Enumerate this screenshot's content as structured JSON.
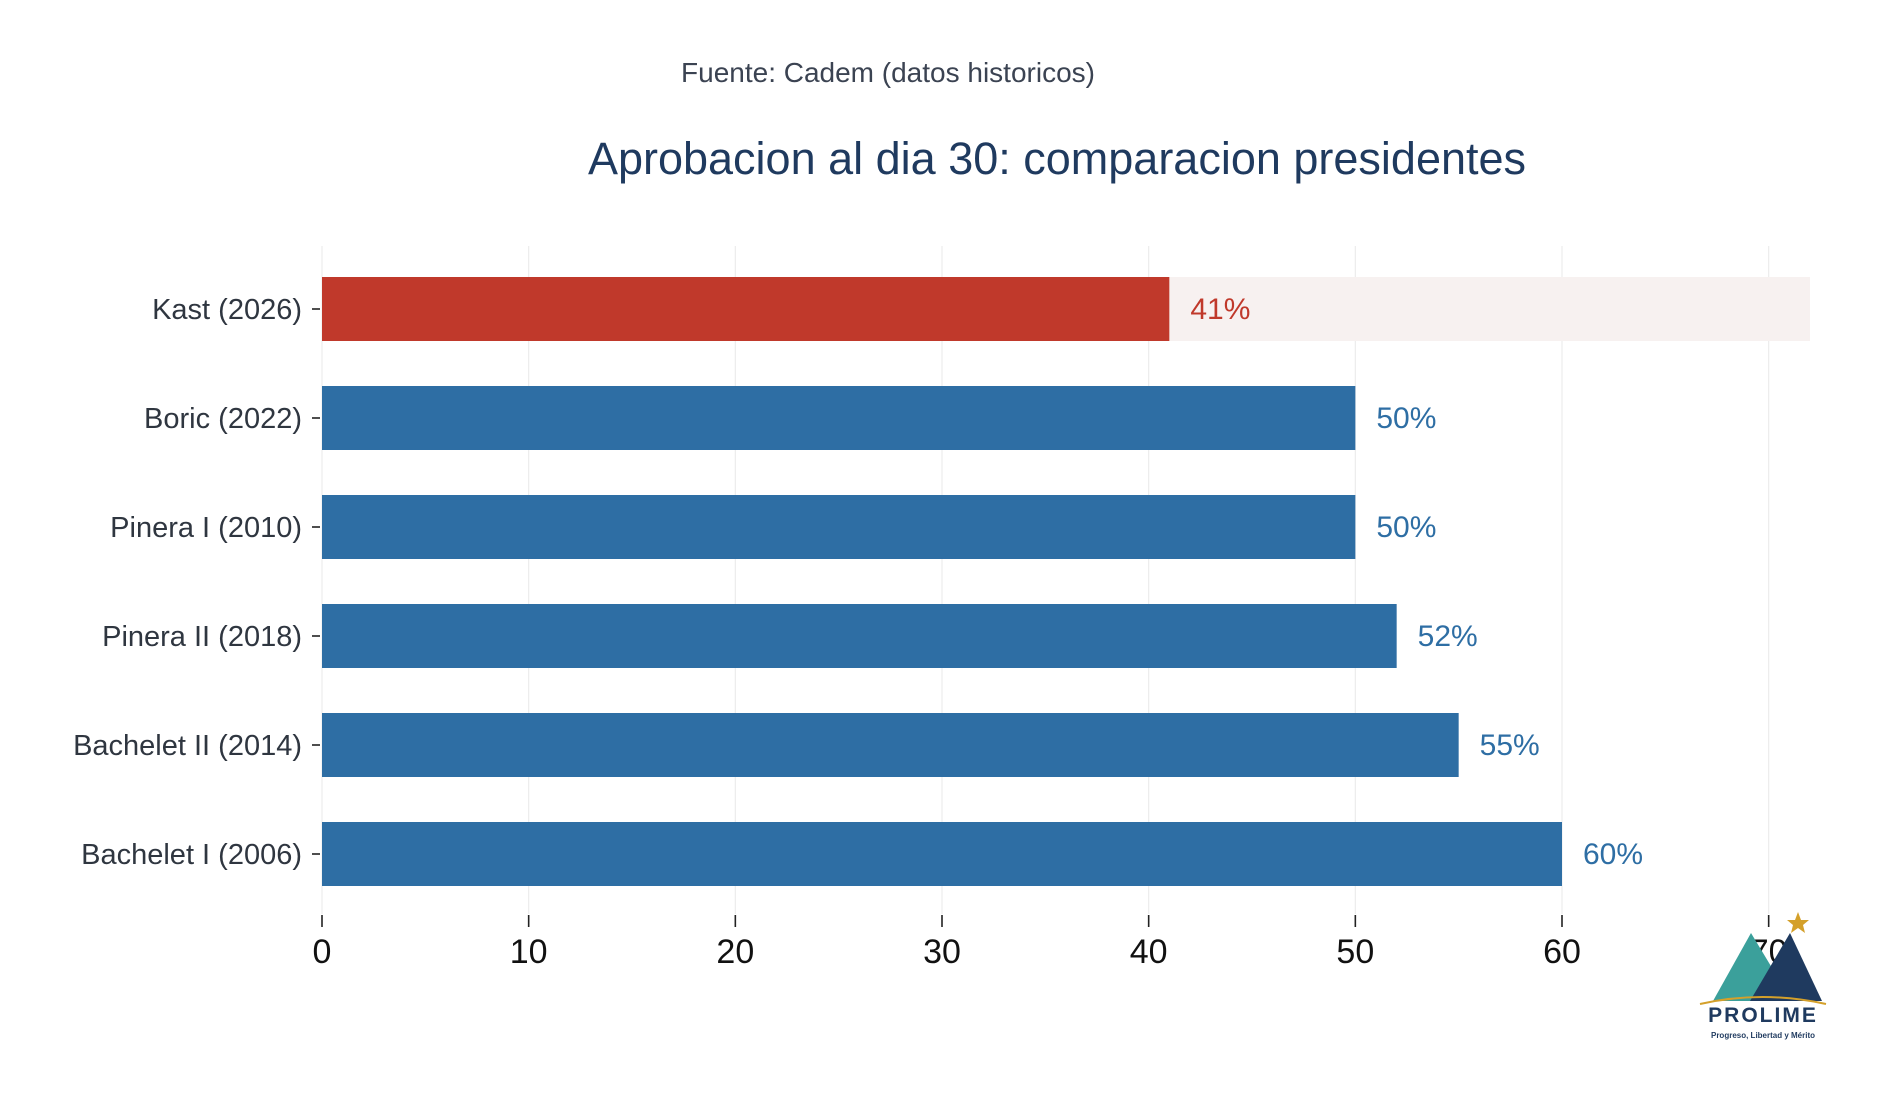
{
  "source_note": "Fuente: Cadem (datos historicos)",
  "colors": {
    "highlight": "#c0392b",
    "default": "#2e6ea4",
    "highlight_track": "#f7f1f0",
    "grid": "#ececec",
    "title": "#1f3a5f"
  },
  "chart_data": {
    "type": "bar",
    "orientation": "horizontal",
    "title": "Aprobacion al dia 30: comparacion presidentes",
    "xlabel": "",
    "ylabel": "",
    "categories": [
      "Kast (2026)",
      "Boric (2022)",
      "Pinera I (2010)",
      "Pinera II (2018)",
      "Bachelet II (2014)",
      "Bachelet I (2006)"
    ],
    "values": [
      41,
      50,
      50,
      52,
      55,
      60
    ],
    "value_labels": [
      "41%",
      "50%",
      "50%",
      "52%",
      "55%",
      "60%"
    ],
    "highlight_index": 0,
    "xlim": [
      0,
      72
    ],
    "xticks": [
      0,
      10,
      20,
      30,
      40,
      50,
      60,
      70
    ],
    "grid": true
  },
  "logo": {
    "name": "PROLIME",
    "tagline": "Progreso, Libertad y Mérito",
    "icon": "mountain-star-icon",
    "colors": {
      "teal": "#3ba09b",
      "navy": "#1f3a5f",
      "gold": "#d4a02a"
    }
  }
}
